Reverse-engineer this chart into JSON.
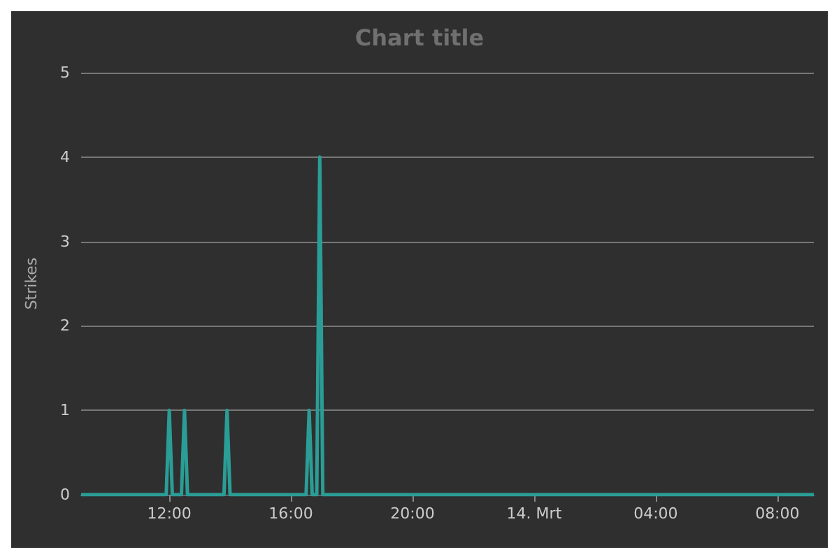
{
  "chart_data": {
    "type": "line",
    "title": "Chart title",
    "ylabel": "Strikes",
    "x": [
      "--03-13T09:06",
      "--03-13T11:54",
      "--03-13T12:00",
      "--03-13T12:06",
      "--03-13T12:24",
      "--03-13T12:30",
      "--03-13T12:36",
      "--03-13T13:48",
      "--03-13T13:54",
      "--03-13T14:00",
      "--03-13T16:30",
      "--03-13T16:36",
      "--03-13T16:42",
      "--03-13T16:51",
      "--03-13T16:57",
      "--03-13T17:03",
      "--03-14T09:12"
    ],
    "series": [
      {
        "color": "#2a9d96",
        "values": [
          0,
          0,
          1,
          0,
          0,
          1,
          0,
          0,
          1,
          0,
          0,
          1,
          0,
          0,
          4,
          0,
          0
        ]
      }
    ],
    "xlim": [
      "--03-13T09:06",
      "--03-14T09:12"
    ],
    "xticks": [
      {
        "value": "--03-13T12:00",
        "label": "12:00"
      },
      {
        "value": "--03-13T16:00",
        "label": "16:00"
      },
      {
        "value": "--03-13T20:00",
        "label": "20:00"
      },
      {
        "value": "--03-14T00:00",
        "label": "14. Mrt"
      },
      {
        "value": "--03-14T04:00",
        "label": "04:00"
      },
      {
        "value": "--03-14T08:00",
        "label": "08:00"
      }
    ],
    "ylim": [
      0,
      5
    ],
    "yticks": [
      0,
      1,
      2,
      3,
      4,
      5
    ],
    "grid": "y",
    "marker": "none",
    "line_style": "solid"
  }
}
